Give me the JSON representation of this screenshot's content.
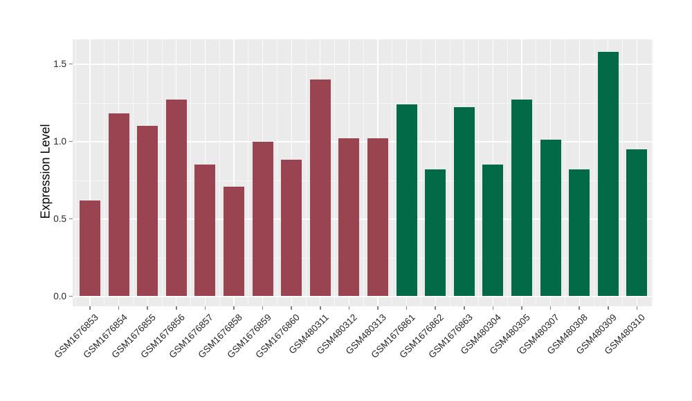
{
  "chart_data": {
    "type": "bar",
    "title": "",
    "xlabel": "",
    "ylabel": "Expression Level",
    "ylim": [
      0,
      1.66
    ],
    "yticks": [
      0.0,
      0.5,
      1.0,
      1.5
    ],
    "ytick_labels": [
      "0.0",
      "0.5",
      "1.0",
      "1.5"
    ],
    "grid": "white major and minor gridlines on gray panel",
    "legend_position": "none",
    "x_tick_label_angle": 45,
    "categories": [
      "GSM1676853",
      "GSM1676854",
      "GSM1676855",
      "GSM1676856",
      "GSM1676857",
      "GSM1676858",
      "GSM1676859",
      "GSM1676860",
      "GSM480311",
      "GSM480312",
      "GSM480313",
      "GSM1676861",
      "GSM1676862",
      "GSM1676863",
      "GSM480304",
      "GSM480305",
      "GSM480307",
      "GSM480308",
      "GSM480309",
      "GSM480310"
    ],
    "values": [
      0.62,
      1.18,
      1.1,
      1.27,
      0.85,
      0.71,
      1.0,
      0.88,
      1.4,
      1.02,
      1.02,
      1.24,
      0.82,
      1.22,
      0.85,
      1.27,
      1.01,
      0.82,
      1.58,
      0.95
    ],
    "groups": [
      "maroon",
      "maroon",
      "maroon",
      "maroon",
      "maroon",
      "maroon",
      "maroon",
      "maroon",
      "maroon",
      "maroon",
      "maroon",
      "green",
      "green",
      "green",
      "green",
      "green",
      "green",
      "green",
      "green",
      "green"
    ],
    "group_colors": {
      "maroon": "#9B4451",
      "green": "#036A48"
    }
  },
  "colors": {
    "plot_background": "#FFFFFF",
    "panel_background": "#EBEBEB",
    "grid_major": "#FFFFFF",
    "grid_minor": "#F7F7F7",
    "tick_mark": "#7F7F7F",
    "axis_text": "#262626",
    "axis_title": "#000000"
  }
}
